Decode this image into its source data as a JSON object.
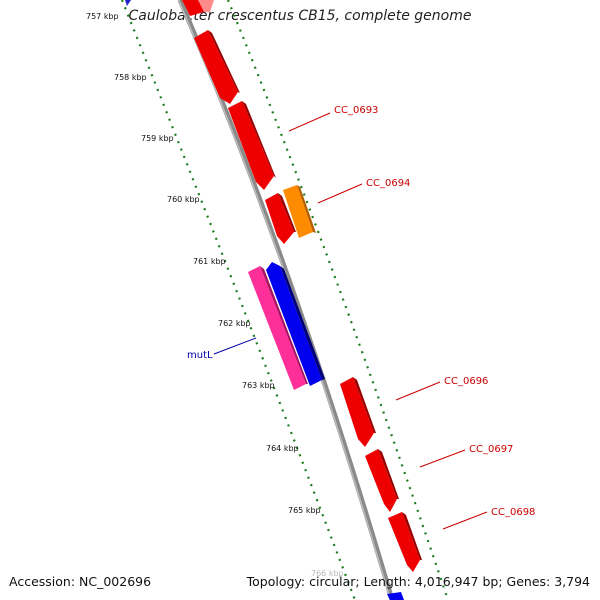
{
  "title": "Caulobacter crescentus CB15, complete genome",
  "footer": {
    "accession": "Accession: NC_002696",
    "topology": "Topology: circular; Length: 4,016,947 bp; Genes: 3,794"
  },
  "ruler": {
    "ticks": [
      "757 kbp",
      "758 kbp",
      "759 kbp",
      "760 kbp",
      "761 kbp",
      "762 kbp",
      "763 kbp",
      "764 kbp",
      "765 kbp"
    ],
    "faded_tick": "766 kbp"
  },
  "gene_labels": {
    "cc_0693": "CC_0693",
    "cc_0694": "CC_0694",
    "cc_0696": "CC_0696",
    "cc_0697": "CC_0697",
    "cc_0698": "CC_0698",
    "mutl": "mutL"
  },
  "colors": {
    "backbone": "#8a8a8a",
    "red_gene": "#ee0000",
    "orange_gene": "#ff8c00",
    "blue_gene": "#0000ee",
    "pink_gene": "#ff2f9a",
    "tick_green": "#1c7c1c",
    "label_red": "#cc0000",
    "label_blue": "#0000aa"
  }
}
